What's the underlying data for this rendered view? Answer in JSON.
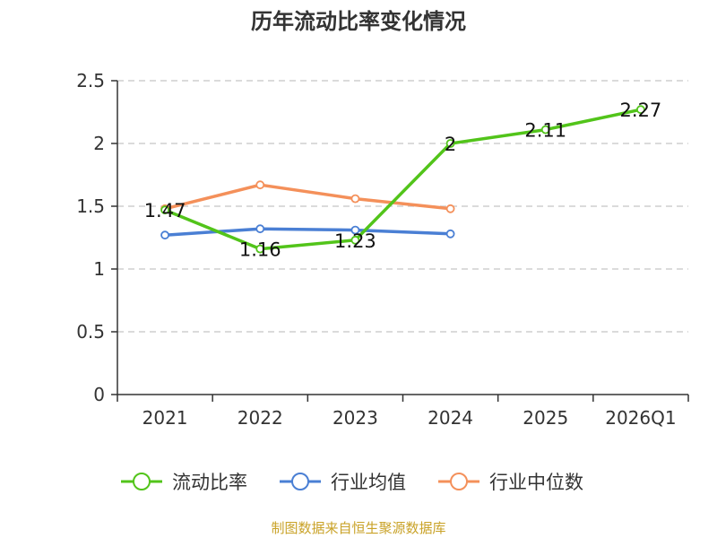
{
  "chart_data": {
    "type": "line",
    "title": "历年流动比率变化情况",
    "categories": [
      "2021",
      "2022",
      "2023",
      "2024",
      "2025",
      "2026Q1"
    ],
    "ylim": [
      0,
      2.5
    ],
    "yticks": [
      "0",
      "0.5",
      "1",
      "1.5",
      "2",
      "2.5"
    ],
    "ytick_values": [
      0,
      0.5,
      1,
      1.5,
      2,
      2.5
    ],
    "grid": true,
    "legend_position": "bottom",
    "series": [
      {
        "name": "流动比率",
        "color": "#52c41a",
        "values": [
          1.47,
          1.16,
          1.23,
          2.0,
          2.11,
          2.27
        ],
        "labels": [
          "1.47",
          "1.16",
          "1.23",
          "2",
          "2.11",
          "2.27"
        ]
      },
      {
        "name": "行业均值",
        "color": "#4a7fd4",
        "values": [
          1.27,
          1.32,
          1.31,
          1.28,
          null,
          null
        ]
      },
      {
        "name": "行业中位数",
        "color": "#f4905a",
        "values": [
          1.48,
          1.67,
          1.56,
          1.48,
          null,
          null
        ]
      }
    ]
  },
  "source": "制图数据来自恒生聚源数据库"
}
